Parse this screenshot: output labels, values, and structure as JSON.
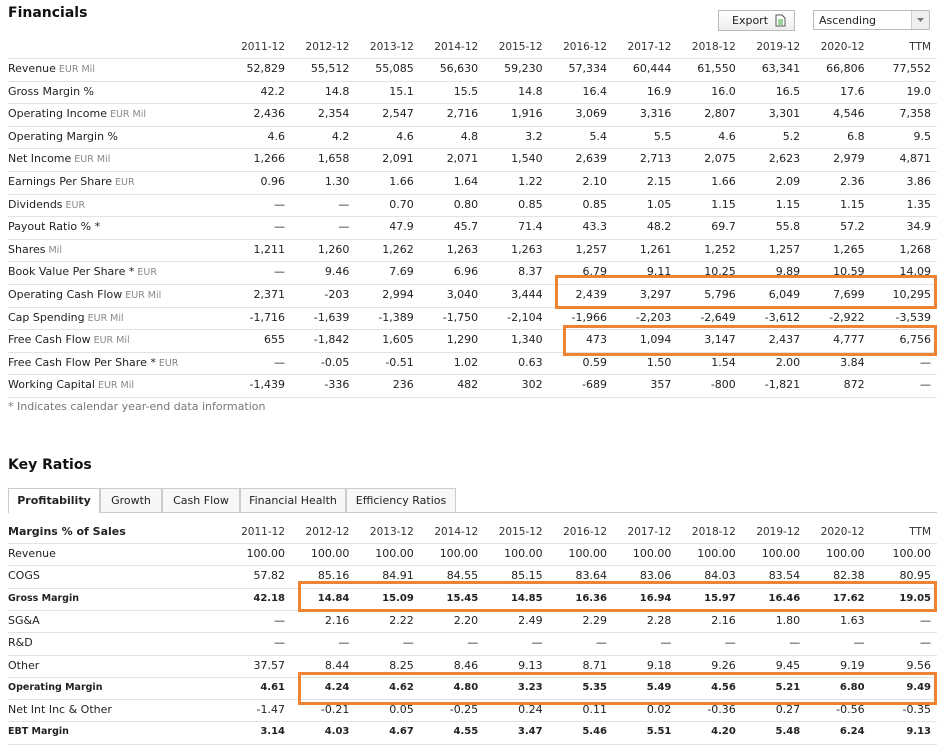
{
  "financials": {
    "title": "Financials",
    "export_label": "Export",
    "sort_label": "Ascending",
    "columns": [
      "2011-12",
      "2012-12",
      "2013-12",
      "2014-12",
      "2015-12",
      "2016-12",
      "2017-12",
      "2018-12",
      "2019-12",
      "2020-12",
      "TTM"
    ],
    "rows": [
      {
        "label": "Revenue",
        "unit": "EUR Mil",
        "values": [
          "52,829",
          "55,512",
          "55,085",
          "56,630",
          "59,230",
          "57,334",
          "60,444",
          "61,550",
          "63,341",
          "66,806",
          "77,552"
        ]
      },
      {
        "label": "Gross Margin %",
        "values": [
          "42.2",
          "14.8",
          "15.1",
          "15.5",
          "14.8",
          "16.4",
          "16.9",
          "16.0",
          "16.5",
          "17.6",
          "19.0"
        ]
      },
      {
        "label": "Operating Income",
        "unit": "EUR Mil",
        "values": [
          "2,436",
          "2,354",
          "2,547",
          "2,716",
          "1,916",
          "3,069",
          "3,316",
          "2,807",
          "3,301",
          "4,546",
          "7,358"
        ]
      },
      {
        "label": "Operating Margin %",
        "values": [
          "4.6",
          "4.2",
          "4.6",
          "4.8",
          "3.2",
          "5.4",
          "5.5",
          "4.6",
          "5.2",
          "6.8",
          "9.5"
        ]
      },
      {
        "label": "Net Income",
        "unit": "EUR Mil",
        "values": [
          "1,266",
          "1,658",
          "2,091",
          "2,071",
          "1,540",
          "2,639",
          "2,713",
          "2,075",
          "2,623",
          "2,979",
          "4,871"
        ]
      },
      {
        "label": "Earnings Per Share",
        "unit": "EUR",
        "values": [
          "0.96",
          "1.30",
          "1.66",
          "1.64",
          "1.22",
          "2.10",
          "2.15",
          "1.66",
          "2.09",
          "2.36",
          "3.86"
        ]
      },
      {
        "label": "Dividends",
        "unit": "EUR",
        "values": [
          "—",
          "—",
          "0.70",
          "0.80",
          "0.85",
          "0.85",
          "1.05",
          "1.15",
          "1.15",
          "1.15",
          "1.35"
        ]
      },
      {
        "label": "Payout Ratio % *",
        "values": [
          "—",
          "—",
          "47.9",
          "45.7",
          "71.4",
          "43.3",
          "48.2",
          "69.7",
          "55.8",
          "57.2",
          "34.9"
        ]
      },
      {
        "label": "Shares",
        "unit": "Mil",
        "values": [
          "1,211",
          "1,260",
          "1,262",
          "1,263",
          "1,263",
          "1,257",
          "1,261",
          "1,252",
          "1,257",
          "1,265",
          "1,268"
        ]
      },
      {
        "label": "Book Value Per Share *",
        "unit": "EUR",
        "values": [
          "—",
          "9.46",
          "7.69",
          "6.96",
          "8.37",
          "6.79",
          "9.11",
          "10.25",
          "9.89",
          "10.59",
          "14.09"
        ]
      },
      {
        "label": "Operating Cash Flow",
        "unit": "EUR Mil",
        "values": [
          "2,371",
          "-203",
          "2,994",
          "3,040",
          "3,444",
          "2,439",
          "3,297",
          "5,796",
          "6,049",
          "7,699",
          "10,295"
        ]
      },
      {
        "label": "Cap Spending",
        "unit": "EUR Mil",
        "values": [
          "-1,716",
          "-1,639",
          "-1,389",
          "-1,750",
          "-2,104",
          "-1,966",
          "-2,203",
          "-2,649",
          "-3,612",
          "-2,922",
          "-3,539"
        ]
      },
      {
        "label": "Free Cash Flow",
        "unit": "EUR Mil",
        "values": [
          "655",
          "-1,842",
          "1,605",
          "1,290",
          "1,340",
          "473",
          "1,094",
          "3,147",
          "2,437",
          "4,777",
          "6,756"
        ]
      },
      {
        "label": "Free Cash Flow Per Share *",
        "unit": "EUR",
        "values": [
          "—",
          "-0.05",
          "-0.51",
          "1.02",
          "0.63",
          "0.59",
          "1.50",
          "1.54",
          "2.00",
          "3.84",
          "—"
        ]
      },
      {
        "label": "Working Capital",
        "unit": "EUR Mil",
        "values": [
          "-1,439",
          "-336",
          "236",
          "482",
          "302",
          "-689",
          "357",
          "-800",
          "-1,821",
          "872",
          "—"
        ]
      }
    ],
    "footnote": "* Indicates calendar year-end data information"
  },
  "key_ratios": {
    "title": "Key Ratios",
    "tabs": [
      "Profitability",
      "Growth",
      "Cash Flow",
      "Financial Health",
      "Efficiency Ratios"
    ],
    "section_label": "Margins % of Sales",
    "columns": [
      "2011-12",
      "2012-12",
      "2013-12",
      "2014-12",
      "2015-12",
      "2016-12",
      "2017-12",
      "2018-12",
      "2019-12",
      "2020-12",
      "TTM"
    ],
    "rows": [
      {
        "label": "Revenue",
        "values": [
          "100.00",
          "100.00",
          "100.00",
          "100.00",
          "100.00",
          "100.00",
          "100.00",
          "100.00",
          "100.00",
          "100.00",
          "100.00"
        ]
      },
      {
        "label": "COGS",
        "values": [
          "57.82",
          "85.16",
          "84.91",
          "84.55",
          "85.15",
          "83.64",
          "83.06",
          "84.03",
          "83.54",
          "82.38",
          "80.95"
        ]
      },
      {
        "label": "Gross Margin",
        "bold": true,
        "values": [
          "42.18",
          "14.84",
          "15.09",
          "15.45",
          "14.85",
          "16.36",
          "16.94",
          "15.97",
          "16.46",
          "17.62",
          "19.05"
        ]
      },
      {
        "label": "SG&A",
        "values": [
          "—",
          "2.16",
          "2.22",
          "2.20",
          "2.49",
          "2.29",
          "2.28",
          "2.16",
          "1.80",
          "1.63",
          "—"
        ]
      },
      {
        "label": "R&D",
        "values": [
          "—",
          "—",
          "—",
          "—",
          "—",
          "—",
          "—",
          "—",
          "—",
          "—",
          "—"
        ]
      },
      {
        "label": "Other",
        "values": [
          "37.57",
          "8.44",
          "8.25",
          "8.46",
          "9.13",
          "8.71",
          "9.18",
          "9.26",
          "9.45",
          "9.19",
          "9.56"
        ]
      },
      {
        "label": "Operating Margin",
        "bold": true,
        "values": [
          "4.61",
          "4.24",
          "4.62",
          "4.80",
          "3.23",
          "5.35",
          "5.49",
          "4.56",
          "5.21",
          "6.80",
          "9.49"
        ]
      },
      {
        "label": "Net Int Inc & Other",
        "values": [
          "-1.47",
          "-0.21",
          "0.05",
          "-0.25",
          "0.24",
          "0.11",
          "0.02",
          "-0.36",
          "0.27",
          "-0.56",
          "-0.35"
        ]
      },
      {
        "label": "EBT Margin",
        "bold": true,
        "values": [
          "3.14",
          "4.03",
          "4.67",
          "4.55",
          "3.47",
          "5.46",
          "5.51",
          "4.20",
          "5.48",
          "6.24",
          "9.13"
        ]
      }
    ]
  }
}
